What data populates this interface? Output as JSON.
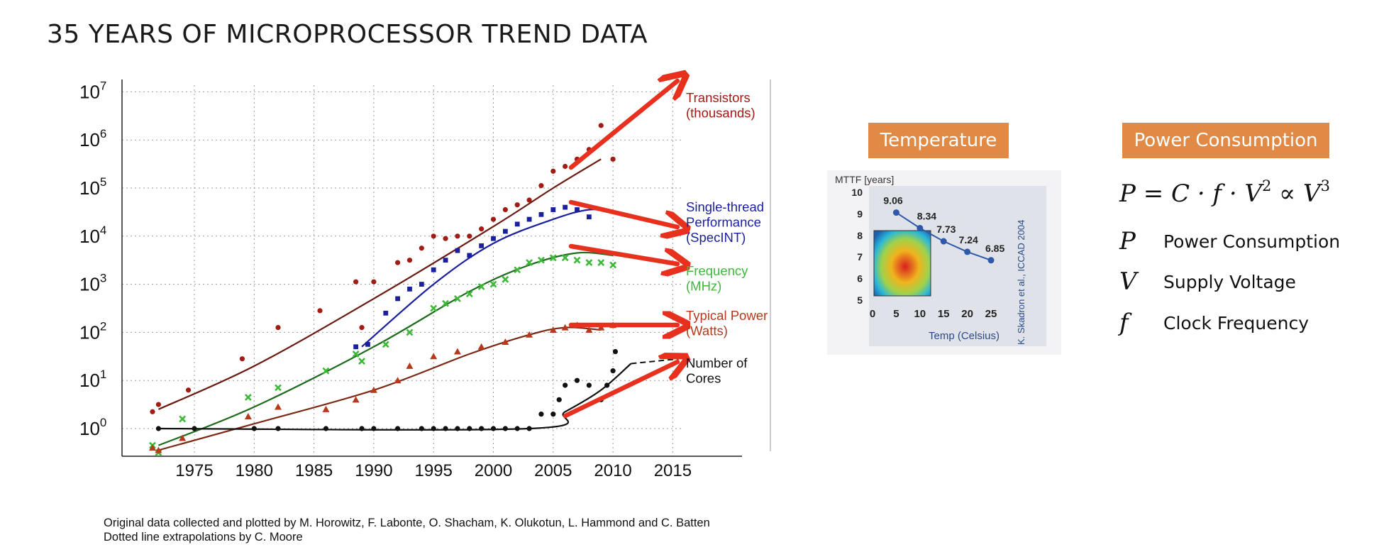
{
  "title": "35 YEARS OF MICROPROCESSOR TREND DATA",
  "credits": {
    "line1": "Original data collected and plotted by M. Horowitz, F. Labonte, O. Shacham, K. Olukotun, L. Hammond and C. Batten",
    "line2": "Dotted line extrapolations by C. Moore"
  },
  "temperature_panel": {
    "header": "Temperature"
  },
  "power_panel": {
    "header": "Power Consumption",
    "formula_parts": {
      "p": "P",
      "eq": " = C · f · V",
      "sq": "2",
      "prop": " ∝ V",
      "cube": "3"
    },
    "legend": [
      {
        "symbol": "P",
        "label": "Power Consumption"
      },
      {
        "symbol": "V",
        "label": "Supply Voltage"
      },
      {
        "symbol": "f",
        "label": "Clock Frequency"
      }
    ]
  },
  "colors": {
    "transistors": "#a01c14",
    "single_thread": "#1a1f9e",
    "frequency": "#3fb83a",
    "power": "#b7391c",
    "cores": "#111111",
    "arrow": "#e8301f",
    "header_bg": "#e08a45",
    "temp_line": "#2e58a8"
  },
  "chart_data": [
    {
      "type": "scatter",
      "title": "",
      "xlabel": "",
      "ylabel": "",
      "x_ticks": [
        "1975",
        "1980",
        "1985",
        "1990",
        "1995",
        "2000",
        "2005",
        "2010",
        "2015"
      ],
      "y_ticks": [
        {
          "base": "10",
          "exp": "0"
        },
        {
          "base": "10",
          "exp": "1"
        },
        {
          "base": "10",
          "exp": "2"
        },
        {
          "base": "10",
          "exp": "3"
        },
        {
          "base": "10",
          "exp": "4"
        },
        {
          "base": "10",
          "exp": "5"
        },
        {
          "base": "10",
          "exp": "6"
        },
        {
          "base": "10",
          "exp": "7"
        }
      ],
      "xlim": [
        1969,
        2020
      ],
      "ylim_log10": [
        -0.6,
        7.4
      ],
      "y_scale": "log",
      "grid": true,
      "series": [
        {
          "name": "Transistors (thousands)",
          "label_lines": [
            "Transistors",
            "(thousands)"
          ],
          "color_key": "transistors",
          "marker": "circle",
          "points": [
            [
              1971.5,
              0.35
            ],
            [
              1972,
              0.5
            ],
            [
              1974.5,
              0.8
            ],
            [
              1979,
              1.45
            ],
            [
              1982,
              2.1
            ],
            [
              1985.5,
              2.45
            ],
            [
              1988.5,
              3.05
            ],
            [
              1989,
              2.1
            ],
            [
              1990,
              3.05
            ],
            [
              1992,
              3.45
            ],
            [
              1993,
              3.5
            ],
            [
              1994,
              3.75
            ],
            [
              1995,
              4.0
            ],
            [
              1996,
              3.95
            ],
            [
              1997,
              4.0
            ],
            [
              1998,
              4.0
            ],
            [
              1999,
              4.15
            ],
            [
              2000,
              4.35
            ],
            [
              2001,
              4.55
            ],
            [
              2002,
              4.65
            ],
            [
              2003,
              4.75
            ],
            [
              2004,
              5.05
            ],
            [
              2005,
              5.35
            ],
            [
              2006,
              5.45
            ],
            [
              2007,
              5.6
            ],
            [
              2008,
              5.8
            ],
            [
              2009,
              6.3
            ],
            [
              2010,
              5.6
            ]
          ],
          "trend": [
            [
              1972,
              0.4
            ],
            [
              1980,
              1.3
            ],
            [
              1990,
              2.7
            ],
            [
              2000,
              4.2
            ],
            [
              2005,
              5.0
            ],
            [
              2009,
              5.6
            ]
          ]
        },
        {
          "name": "Single-thread Performance (SpecINT)",
          "label_lines": [
            "Single-thread",
            "Performance",
            "(SpecINT)"
          ],
          "color_key": "single_thread",
          "marker": "square",
          "points": [
            [
              1988.5,
              1.7
            ],
            [
              1989.5,
              1.75
            ],
            [
              1991,
              2.4
            ],
            [
              1992,
              2.7
            ],
            [
              1993,
              2.9
            ],
            [
              1994,
              3.0
            ],
            [
              1995,
              3.3
            ],
            [
              1996,
              3.5
            ],
            [
              1997,
              3.7
            ],
            [
              1998,
              3.6
            ],
            [
              1999,
              3.8
            ],
            [
              2000,
              3.95
            ],
            [
              2001,
              4.1
            ],
            [
              2002,
              4.25
            ],
            [
              2003,
              4.35
            ],
            [
              2004,
              4.45
            ],
            [
              2005,
              4.55
            ],
            [
              2006,
              4.6
            ],
            [
              2007,
              4.55
            ],
            [
              2008,
              4.4
            ]
          ],
          "trend": [
            [
              1989,
              1.7
            ],
            [
              1995,
              3.0
            ],
            [
              2000,
              3.85
            ],
            [
              2005,
              4.35
            ],
            [
              2008,
              4.55
            ],
            [
              2010,
              4.5
            ]
          ]
        },
        {
          "name": "Frequency (MHz)",
          "label_lines": [
            "Frequency",
            "(MHz)"
          ],
          "color_key": "frequency",
          "marker": "x",
          "points": [
            [
              1971.5,
              -0.35
            ],
            [
              1972,
              -0.5
            ],
            [
              1974,
              0.2
            ],
            [
              1979.5,
              0.65
            ],
            [
              1982,
              0.85
            ],
            [
              1986,
              1.2
            ],
            [
              1988.5,
              1.55
            ],
            [
              1989,
              1.4
            ],
            [
              1991,
              1.75
            ],
            [
              1993,
              2.0
            ],
            [
              1995,
              2.5
            ],
            [
              1996,
              2.6
            ],
            [
              1997,
              2.7
            ],
            [
              1998,
              2.8
            ],
            [
              1999,
              2.95
            ],
            [
              2000,
              3.0
            ],
            [
              2001,
              3.1
            ],
            [
              2002,
              3.3
            ],
            [
              2003,
              3.45
            ],
            [
              2004,
              3.5
            ],
            [
              2005,
              3.55
            ],
            [
              2006,
              3.55
            ],
            [
              2007,
              3.5
            ],
            [
              2008,
              3.45
            ],
            [
              2009,
              3.45
            ],
            [
              2010,
              3.4
            ]
          ],
          "trend": [
            [
              1972,
              -0.35
            ],
            [
              1980,
              0.45
            ],
            [
              1990,
              1.7
            ],
            [
              1998,
              2.85
            ],
            [
              2003,
              3.4
            ],
            [
              2007,
              3.65
            ],
            [
              2010,
              3.6
            ]
          ]
        },
        {
          "name": "Typical Power (Watts)",
          "label_lines": [
            "Typical Power",
            "(Watts)"
          ],
          "color_key": "power",
          "marker": "triangle",
          "points": [
            [
              1971.5,
              -0.4
            ],
            [
              1972,
              -0.45
            ],
            [
              1974,
              -0.2
            ],
            [
              1979.5,
              0.25
            ],
            [
              1982,
              0.45
            ],
            [
              1986,
              0.4
            ],
            [
              1988.5,
              0.6
            ],
            [
              1990,
              0.8
            ],
            [
              1992,
              1.0
            ],
            [
              1993,
              1.3
            ],
            [
              1995,
              1.5
            ],
            [
              1997,
              1.6
            ],
            [
              1999,
              1.7
            ],
            [
              2001,
              1.8
            ],
            [
              2003,
              1.95
            ],
            [
              2005,
              2.05
            ],
            [
              2006,
              2.1
            ],
            [
              2007,
              2.15
            ],
            [
              2008,
              2.05
            ],
            [
              2009,
              2.1
            ],
            [
              2010,
              2.15
            ]
          ],
          "trend": [
            [
              1972,
              -0.45
            ],
            [
              1980,
              0.1
            ],
            [
              1990,
              0.8
            ],
            [
              1998,
              1.55
            ],
            [
              2003,
              1.95
            ],
            [
              2006,
              2.1
            ],
            [
              2009,
              2.05
            ]
          ]
        },
        {
          "name": "Number of Cores",
          "label_lines": [
            "Number",
            "of",
            "Cores"
          ],
          "color_key": "cores",
          "marker": "circle",
          "points": [
            [
              1972,
              0
            ],
            [
              1975,
              0
            ],
            [
              1980,
              0
            ],
            [
              1982,
              0
            ],
            [
              1986,
              0
            ],
            [
              1989,
              0
            ],
            [
              1990,
              0
            ],
            [
              1992,
              0
            ],
            [
              1994,
              0
            ],
            [
              1995,
              0
            ],
            [
              1996,
              0
            ],
            [
              1997,
              0
            ],
            [
              1998,
              0
            ],
            [
              1999,
              0
            ],
            [
              2000,
              0
            ],
            [
              2001,
              0
            ],
            [
              2002,
              0
            ],
            [
              2003,
              0
            ],
            [
              2004,
              0.3
            ],
            [
              2005,
              0.3
            ],
            [
              2005.5,
              0.6
            ],
            [
              2006,
              0.9
            ],
            [
              2007,
              1.0
            ],
            [
              2008,
              0.9
            ],
            [
              2009,
              0.6
            ],
            [
              2009.5,
              0.9
            ],
            [
              2010,
              1.2
            ],
            [
              2010.2,
              1.6
            ]
          ],
          "trend": [
            [
              1972,
              0
            ],
            [
              2003,
              0
            ],
            [
              2006,
              0.35
            ],
            [
              2009,
              0.8
            ],
            [
              2011.5,
              1.35
            ]
          ],
          "extrapolation": [
            [
              2011.5,
              1.35
            ],
            [
              2015.5,
              1.45
            ]
          ]
        }
      ]
    },
    {
      "type": "line",
      "title": "",
      "ylabel": "MTTF [years]",
      "xlabel": "Temp (Celsius)",
      "side_note": "K. Skadron et al., ICCAD 2004",
      "x_ticks": [
        "0",
        "5",
        "10",
        "15",
        "20",
        "25"
      ],
      "y_ticks": [
        "5",
        "6",
        "7",
        "8",
        "9",
        "10"
      ],
      "xlim": [
        0,
        25
      ],
      "ylim": [
        5,
        10
      ],
      "series": [
        {
          "x": [
            5,
            10,
            15,
            20,
            25
          ],
          "y": [
            9.06,
            8.34,
            7.73,
            7.24,
            6.85
          ],
          "labels": [
            "9.06",
            "8.34",
            "7.73",
            "7.24",
            "6.85"
          ]
        }
      ]
    }
  ]
}
